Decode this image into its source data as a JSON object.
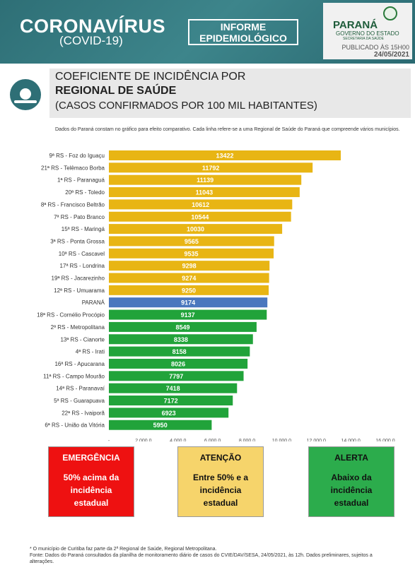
{
  "header": {
    "title": "CORONAVÍRUS",
    "subtitle": "(COVID-19)",
    "report_label_1": "INFORME",
    "report_label_2": "EPIDEMIOLÓGICO",
    "state_name": "PARANÁ",
    "government": "GOVERNO DO ESTADO",
    "secretariat": "SECRETARIA DA SAÚDE",
    "published": "PUBLICADO ÀS 15H00",
    "date": "24/05/2021"
  },
  "heading": {
    "line1": "COEFICIENTE DE INCIDÊNCIA POR",
    "line2": "REGIONAL DE SAÚDE",
    "line3": "(CASOS CONFIRMADOS POR 100 MIL HABITANTES)"
  },
  "note": "Dados do Paraná constam no gráfico para efeito comparativo. Cada linha refere-se a uma Regional de Saúde do Paraná que compreende vários municípios.",
  "chart_data": {
    "type": "bar",
    "orientation": "horizontal",
    "categories": [
      "9ª RS - Foz do Iguaçu",
      "21ª RS - Telêmaco Borba",
      "1ª RS - Paranaguá",
      "20ª RS - Toledo",
      "8ª RS - Francisco Beltrão",
      "7ª RS - Pato Branco",
      "15ª RS - Maringá",
      "3ª RS - Ponta Grossa",
      "10ª RS - Cascavel",
      "17ª RS - Londrina",
      "19ª RS - Jacarezinho",
      "12ª RS - Umuarama",
      "PARANÁ",
      "18ª RS - Cornélio Procópio",
      "2ª RS - Metropolitana",
      "13ª RS - Cianorte",
      "4ª RS - Irati",
      "16ª RS - Apucarana",
      "11ª RS - Campo Mourão",
      "14ª RS - Paranavaí",
      "5ª RS - Guarapuava",
      "22ª RS - Ivaiporã",
      "6ª RS - União da Vitória"
    ],
    "values": [
      13422,
      11792,
      11139,
      11043,
      10612,
      10544,
      10030,
      9565,
      9535,
      9298,
      9274,
      9250,
      9174,
      9137,
      8549,
      8338,
      8158,
      8026,
      7797,
      7418,
      7172,
      6923,
      5950
    ],
    "value_labels": [
      "13422",
      "11792",
      "11139",
      "11043",
      "10612",
      "10544",
      "10030",
      "9565",
      "9535",
      "9298",
      "9274",
      "9250",
      "9174",
      "9137",
      "8549",
      "8338",
      "8158",
      "8026",
      "7797",
      "7418",
      "7172",
      "6923",
      "5950"
    ],
    "x_ticks": [
      0,
      2000,
      4000,
      6000,
      8000,
      10000,
      12000,
      14000,
      16000
    ],
    "x_tick_labels": [
      "-",
      "2.000,0",
      "4.000,0",
      "6.000,0",
      "8.000,0",
      "10.000,0",
      "12.000,0",
      "14.000,0",
      "16.000,0"
    ],
    "xlim": [
      0,
      16000
    ],
    "colors": {
      "above": "#e8b514",
      "state": "#4a77be",
      "below": "#21a33a"
    },
    "state_index": 12
  },
  "legend": {
    "red": {
      "title": "EMERGÊNCIA",
      "text": "50% acima da incidência estadual",
      "color": "#ee1111"
    },
    "yellow": {
      "title": "ATENÇÃO",
      "text": "Entre 50% e a incidência estadual",
      "color": "#f6d46b"
    },
    "green": {
      "title": "ALERTA",
      "text": "Abaixo da incidência estadual",
      "color": "#2cac4c"
    }
  },
  "footer": {
    "line1": "* O município de Curitiba faz parte da 2ª Regional de Saúde, Regional Metropolitana.",
    "line2": "Fonte: Dados do Paraná consultados da planilha de monitoramento diário de casos do CVIE/DAV/SESA, 24/05/2021, às 12h. Dados preliminares, sujeitos a alterações."
  }
}
